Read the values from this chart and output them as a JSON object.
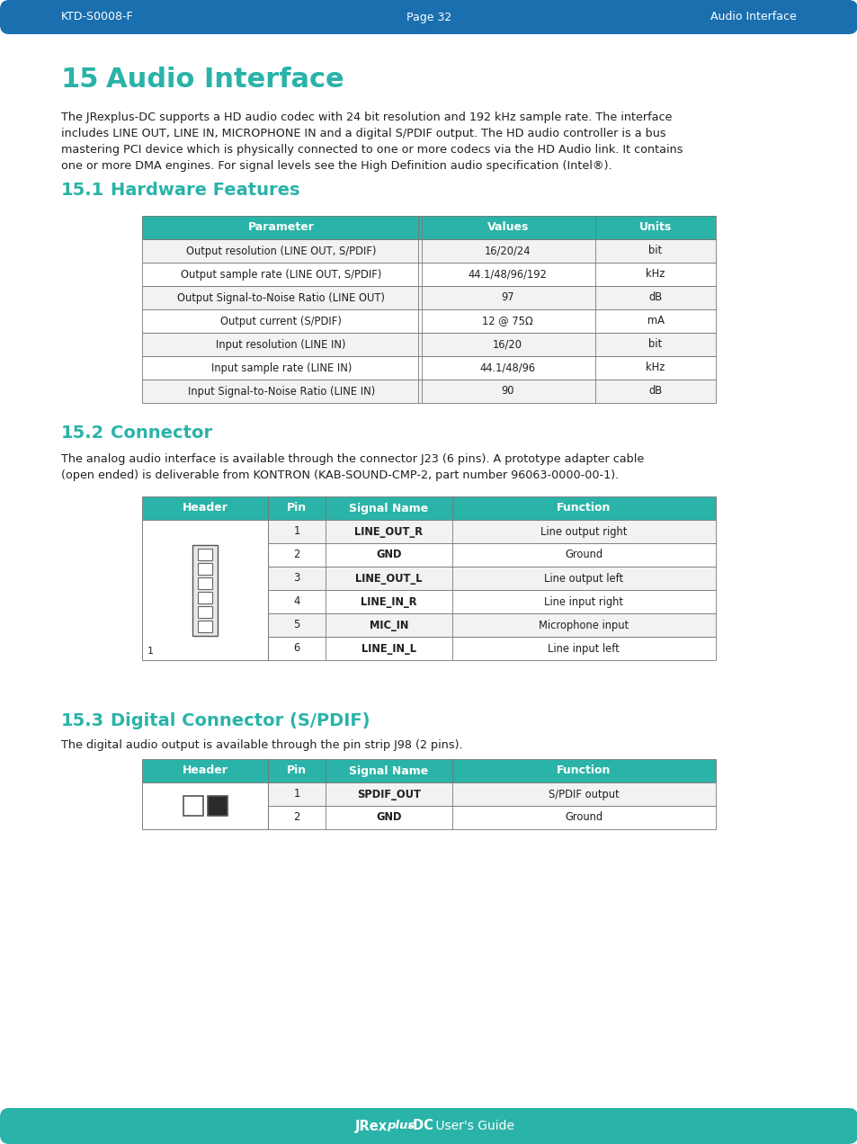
{
  "header_bg": "#1a6faf",
  "header_text_color": "#ffffff",
  "footer_bg": "#2ab3a8",
  "footer_text_color": "#ffffff",
  "teal_color": "#2ab3a8",
  "page_bg": "#ffffff",
  "body_text_color": "#231f20",
  "header_left": "KTD-S0008-F",
  "header_center": "Page 32",
  "header_right": "Audio Interface",
  "section15_num": "15",
  "section15_title": "Audio Interface",
  "section15_body_lines": [
    "The JRexplus-DC supports a HD audio codec with 24 bit resolution and 192 kHz sample rate. The interface",
    "includes LINE OUT, LINE IN, MICROPHONE IN and a digital S/PDIF output. The HD audio controller is a bus",
    "mastering PCI device which is physically connected to one or more codecs via the HD Audio link. It contains",
    "one or more DMA engines. For signal levels see the High Definition audio specification (Intel®)."
  ],
  "section151_num": "15.1",
  "section151_title": "Hardware Features",
  "table1_header": [
    "Parameter",
    "Values",
    "Units"
  ],
  "table1_header_bg": "#2ab3a8",
  "table1_rows": [
    [
      "Output resolution (LINE OUT, S/PDIF)",
      "16/20/24",
      "bit"
    ],
    [
      "Output sample rate (LINE OUT, S/PDIF)",
      "44.1/48/96/192",
      "kHz"
    ],
    [
      "Output Signal-to-Noise Ratio (LINE OUT)",
      "97",
      "dB"
    ],
    [
      "Output current (S/PDIF)",
      "12 @ 75Ω",
      "mA"
    ],
    [
      "Input resolution (LINE IN)",
      "16/20",
      "bit"
    ],
    [
      "Input sample rate (LINE IN)",
      "44.1/48/96",
      "kHz"
    ],
    [
      "Input Signal-to-Noise Ratio (LINE IN)",
      "90",
      "dB"
    ]
  ],
  "section152_num": "15.2",
  "section152_title": "Connector",
  "section152_body_lines": [
    "The analog audio interface is available through the connector J23 (6 pins). A prototype adapter cable",
    "(open ended) is deliverable from KONTRON (KAB-SOUND-CMP-2, part number 96063-0000-00-1)."
  ],
  "table2_header": [
    "Header",
    "Pin",
    "Signal Name",
    "Function"
  ],
  "table2_header_bg": "#2ab3a8",
  "table2_rows": [
    [
      "",
      "1",
      "LINE_OUT_R",
      "Line output right"
    ],
    [
      "",
      "2",
      "GND",
      "Ground"
    ],
    [
      "",
      "3",
      "LINE_OUT_L",
      "Line output left"
    ],
    [
      "",
      "4",
      "LINE_IN_R",
      "Line input right"
    ],
    [
      "",
      "5",
      "MIC_IN",
      "Microphone input"
    ],
    [
      "",
      "6",
      "LINE_IN_L",
      "Line input left"
    ]
  ],
  "section153_num": "15.3",
  "section153_title": "Digital Connector (S/PDIF)",
  "section153_body_lines": [
    "The digital audio output is available through the pin strip J98 (2 pins)."
  ],
  "table3_header": [
    "Header",
    "Pin",
    "Signal Name",
    "Function"
  ],
  "table3_header_bg": "#2ab3a8",
  "table3_rows": [
    [
      "",
      "1",
      "SPDIF_OUT",
      "S/PDIF output"
    ],
    [
      "",
      "2",
      "GND",
      "Ground"
    ]
  ],
  "footer_bold": "JRex",
  "footer_italic": "plus",
  "footer_bold2": "-DC",
  "footer_normal": " User's Guide"
}
